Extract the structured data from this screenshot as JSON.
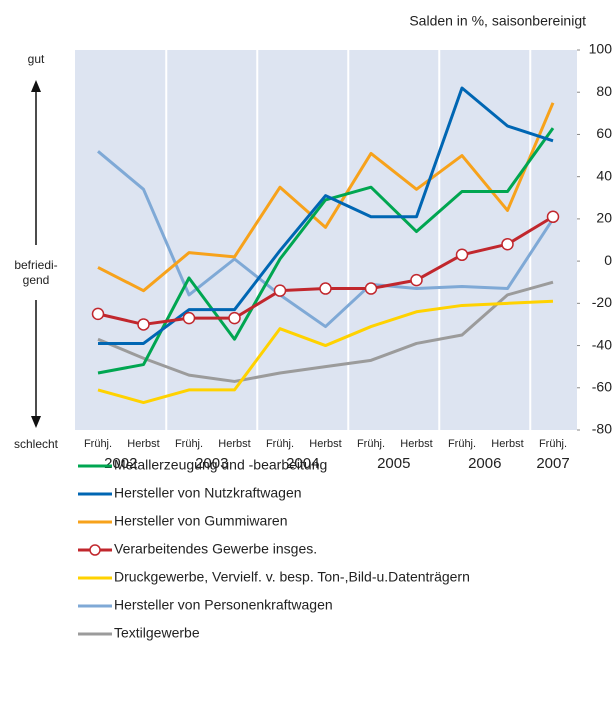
{
  "chart_data": {
    "type": "line",
    "subtitle": "Salden in %, saisonbereinigt",
    "annotations": {
      "top": "gut",
      "middle": [
        "befriedi-",
        "gend"
      ],
      "bottom": "schlecht"
    },
    "categories": [
      "Frühj.",
      "Herbst",
      "Frühj.",
      "Herbst",
      "Frühj.",
      "Herbst",
      "Frühj.",
      "Herbst",
      "Frühj.",
      "Herbst",
      "Frühj."
    ],
    "groups": [
      "2002",
      "2003",
      "2004",
      "2005",
      "2006",
      "2007"
    ],
    "ylim": [
      -80,
      100
    ],
    "yticks": [
      100,
      80,
      60,
      40,
      20,
      0,
      -20,
      -40,
      -60,
      -80
    ],
    "series": [
      {
        "name": "Metallerzeugung und -bearbeitung",
        "color": "#00a651",
        "values": [
          -53,
          -49,
          -8,
          -37,
          1,
          29,
          35,
          14,
          33,
          33,
          63
        ]
      },
      {
        "name": "Hersteller von Nutzkraftwagen",
        "color": "#0066b3",
        "values": [
          -39,
          -39,
          -23,
          -23,
          5,
          31,
          21,
          21,
          82,
          64,
          57
        ]
      },
      {
        "name": "Hersteller von Gummiwaren",
        "color": "#f7a21b",
        "values": [
          -3,
          -14,
          4,
          2,
          35,
          16,
          51,
          34,
          50,
          24,
          75
        ]
      },
      {
        "name": "Verarbeitendes Gewerbe insges.",
        "color": "#c1272d",
        "marker": "circle",
        "values": [
          -25,
          -30,
          -27,
          -27,
          -14,
          -13,
          -13,
          -9,
          3,
          8,
          21
        ]
      },
      {
        "name": "Druckgewerbe, Vervielf. v. besp. Ton-,Bild-u.Datenträgern",
        "color": "#ffd200",
        "values": [
          -61,
          -67,
          -61,
          -61,
          -32,
          -40,
          -31,
          -24,
          -21,
          -20,
          -19
        ]
      },
      {
        "name": "Hersteller von Personenkraftwagen",
        "color": "#7fa9d6",
        "values": [
          52,
          34,
          -16,
          1,
          -16,
          -31,
          -11,
          -13,
          -12,
          -13,
          20
        ]
      },
      {
        "name": "Textilgewerbe",
        "color": "#9b9b9b",
        "values": [
          -37,
          -46,
          -54,
          -57,
          -53,
          -50,
          -47,
          -39,
          -35,
          -16,
          -10
        ]
      }
    ]
  }
}
